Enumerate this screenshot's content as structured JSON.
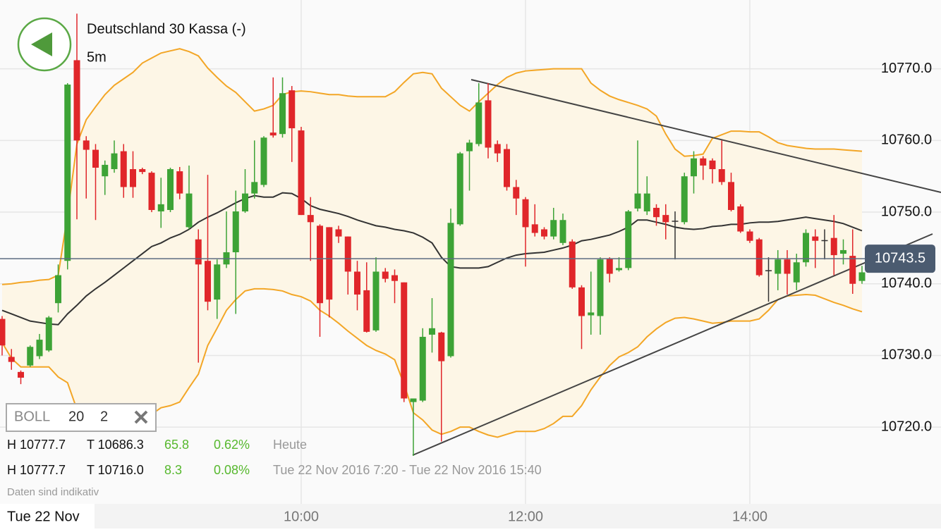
{
  "header": {
    "back_button": "back"
  },
  "chart_data": {
    "type": "candlestick",
    "title": "Deutschland 30 Kassa (-)",
    "subtitle": "5m",
    "categories": [
      null,
      null,
      null,
      null,
      null,
      null,
      null,
      null,
      null,
      null,
      null,
      null,
      null,
      null,
      null,
      null,
      null,
      null,
      null,
      null,
      null,
      null,
      null,
      null,
      null,
      null,
      null,
      null,
      null,
      null,
      null,
      null,
      "10:00",
      null,
      null,
      null,
      null,
      null,
      null,
      null,
      null,
      null,
      null,
      null,
      null,
      null,
      null,
      null,
      null,
      null,
      null,
      null,
      null,
      null,
      null,
      null,
      "12:00",
      null,
      null,
      null,
      null,
      null,
      null,
      null,
      null,
      null,
      null,
      null,
      null,
      null,
      null,
      null,
      null,
      null,
      null,
      null,
      null,
      null,
      null,
      null,
      "14:00",
      null,
      null,
      null,
      null,
      null,
      null,
      null,
      null,
      null,
      null,
      null,
      null
    ],
    "open": [
      10735.1,
      10729.8,
      10727.7,
      10728.6,
      10729.9,
      10730.7,
      10737.3,
      10743.2,
      10771.2,
      10760.0,
      10758.7,
      10755.0,
      10756.0,
      10758.5,
      10756.0,
      10756.0,
      10755.5,
      10750.1,
      10750.3,
      10755.7,
      10747.9,
      10746.2,
      10743.2,
      10737.8,
      10742.7,
      10744.4,
      10750.1,
      10752.6,
      10753.8,
      10761.1,
      10760.9,
      10767.0,
      10761.4,
      10749.6,
      10748.1,
      10747.9,
      10747.6,
      10746.6,
      10741.7,
      10739.1,
      10733.5,
      10741.7,
      10741.2,
      10740.2,
      10723.5,
      10723.7,
      10732.9,
      10733.2,
      10729.9,
      10748.3,
      10758.5,
      10759.5,
      10765.6,
      10759.5,
      10758.8,
      10753.5,
      10751.8,
      10748.3,
      10747.6,
      10746.6,
      10745.7,
      10745.9,
      10739.5,
      10735.6,
      10735.5,
      10743.5,
      10741.9,
      10742.2,
      10750.5,
      10750.1,
      10750.6,
      10749.6,
      10748.8,
      10748.6,
      10755.0,
      10757.5,
      10757.2,
      10756.0,
      10754.2,
      10750.8,
      10747.3,
      10746.2,
      10741.9,
      10741.4,
      10743.4,
      10740.2,
      10743.0,
      10746.6,
      10746.1,
      10746.4,
      10744.2,
      10743.9,
      10740.4
    ],
    "high": [
      10735.5,
      10730.9,
      10727.9,
      10731.4,
      10733.0,
      10735.5,
      10742.7,
      10768.0,
      10777.7,
      10760.6,
      10759.5,
      10757.2,
      10760.0,
      10759.5,
      10758.5,
      10756.2,
      10755.7,
      10754.8,
      10756.2,
      10756.3,
      10756.5,
      10747.6,
      10755.2,
      10743.4,
      10750.1,
      10753.0,
      10756.0,
      10760.0,
      10760.6,
      10768.8,
      10768.8,
      10767.6,
      10761.9,
      10752.1,
      10748.3,
      10747.9,
      10748.1,
      10746.6,
      10743.2,
      10743.0,
      10743.7,
      10742.2,
      10742.0,
      10740.2,
      10724.0,
      10733.8,
      10738.0,
      10733.3,
      10750.5,
      10758.4,
      10760.1,
      10768.0,
      10768.0,
      10760.0,
      10759.5,
      10754.5,
      10752.1,
      10751.1,
      10747.9,
      10750.6,
      10749.8,
      10746.2,
      10739.8,
      10741.7,
      10743.7,
      10743.7,
      10743.7,
      10750.3,
      10760.0,
      10755.0,
      10751.1,
      10751.1,
      10750.1,
      10755.5,
      10758.5,
      10757.8,
      10757.5,
      10760.0,
      10755.5,
      10751.1,
      10747.6,
      10746.4,
      10743.7,
      10744.7,
      10744.7,
      10744.2,
      10747.6,
      10747.6,
      10747.6,
      10749.6,
      10746.2,
      10747.6,
      10742.5
    ],
    "low": [
      10730.0,
      10728.0,
      10726.0,
      10728.4,
      10729.5,
      10730.5,
      10736.0,
      10742.0,
      10749.0,
      10751.9,
      10748.9,
      10752.4,
      10755.5,
      10752.0,
      10752.0,
      10755.3,
      10750.0,
      10747.8,
      10750.0,
      10751.8,
      10747.6,
      10729.0,
      10736.3,
      10735.1,
      10742.2,
      10735.8,
      10749.9,
      10751.9,
      10753.5,
      10760.4,
      10760.4,
      10757.0,
      10749.6,
      10743.2,
      10732.6,
      10735.3,
      10745.7,
      10738.5,
      10736.3,
      10733.2,
      10733.3,
      10740.2,
      10737.3,
      10723.5,
      10716.0,
      10723.5,
      10730.4,
      10718.0,
      10729.7,
      10748.1,
      10753.0,
      10759.2,
      10757.5,
      10757.0,
      10753.0,
      10749.6,
      10742.4,
      10746.6,
      10746.2,
      10746.2,
      10745.4,
      10739.3,
      10730.9,
      10732.9,
      10732.9,
      10740.2,
      10741.7,
      10741.9,
      10750.1,
      10749.6,
      10748.1,
      10746.2,
      10743.4,
      10748.3,
      10752.6,
      10754.5,
      10754.0,
      10753.8,
      10750.1,
      10747.1,
      10745.7,
      10741.0,
      10737.5,
      10739.1,
      10738.5,
      10739.1,
      10742.4,
      10742.2,
      10743.4,
      10741.2,
      10742.7,
      10738.6,
      10740.0
    ],
    "close": [
      10731.4,
      10729.1,
      10726.9,
      10731.2,
      10732.2,
      10735.3,
      10741.2,
      10767.8,
      10760.0,
      10758.7,
      10756.2,
      10756.6,
      10758.2,
      10753.5,
      10753.5,
      10755.6,
      10750.3,
      10751.1,
      10756.0,
      10752.6,
      10752.6,
      10742.7,
      10737.5,
      10742.7,
      10744.4,
      10750.1,
      10752.6,
      10754.2,
      10760.4,
      10760.7,
      10766.6,
      10761.7,
      10749.6,
      10748.6,
      10737.3,
      10737.8,
      10746.6,
      10741.7,
      10738.5,
      10733.3,
      10741.7,
      10740.7,
      10740.4,
      10724.0,
      10724.0,
      10732.6,
      10733.8,
      10729.2,
      10748.5,
      10758.2,
      10759.7,
      10765.3,
      10759.0,
      10758.2,
      10753.5,
      10751.9,
      10747.9,
      10747.1,
      10746.6,
      10748.9,
      10748.9,
      10739.5,
      10735.5,
      10736.0,
      10743.4,
      10741.4,
      10742.2,
      10750.1,
      10752.6,
      10752.6,
      10749.3,
      10748.6,
      10748.8,
      10755.0,
      10757.5,
      10756.5,
      10756.0,
      10754.2,
      10750.3,
      10747.3,
      10746.0,
      10741.2,
      10741.9,
      10743.4,
      10741.4,
      10743.0,
      10747.1,
      10746.0,
      10746.1,
      10744.0,
      10744.7,
      10740.0,
      10741.6
    ],
    "bollinger": {
      "color": "#f3a626",
      "middle_color": "#333333",
      "fill": "#fdf6e6",
      "upper": [
        10739.9,
        10740.0,
        10740.2,
        10740.3,
        10740.5,
        10740.6,
        10741.2,
        10749.6,
        10759.5,
        10762.9,
        10764.7,
        10766.4,
        10767.7,
        10768.6,
        10769.5,
        10770.8,
        10771.5,
        10772.2,
        10772.5,
        10772.8,
        10772.4,
        10771.8,
        10770.1,
        10768.8,
        10767.6,
        10766.7,
        10765.4,
        10764.1,
        10764.4,
        10764.9,
        10766.4,
        10766.8,
        10766.9,
        10766.8,
        10766.6,
        10766.4,
        10766.4,
        10766.2,
        10766.1,
        10766.1,
        10766.1,
        10766.1,
        10766.8,
        10768.1,
        10769.3,
        10769.5,
        10769.3,
        10767.3,
        10766.1,
        10764.9,
        10764.1,
        10765.4,
        10766.6,
        10767.8,
        10768.8,
        10769.4,
        10769.7,
        10769.8,
        10769.9,
        10770.0,
        10770.0,
        10770.0,
        10770.0,
        10768.0,
        10767.0,
        10766.2,
        10765.7,
        10765.3,
        10764.9,
        10764.4,
        10763.4,
        10760.9,
        10758.8,
        10757.8,
        10757.9,
        10758.1,
        10760.3,
        10760.8,
        10761.3,
        10761.3,
        10761.2,
        10761.2,
        10760.5,
        10759.7,
        10759.3,
        10759.1,
        10758.9,
        10758.8,
        10758.8,
        10758.8,
        10758.7,
        10758.6,
        10758.5
      ],
      "middle": [
        10736.3,
        10735.8,
        10735.3,
        10734.8,
        10734.6,
        10734.4,
        10734.3,
        10735.8,
        10737.0,
        10738.3,
        10739.3,
        10740.2,
        10741.2,
        10742.2,
        10743.2,
        10744.2,
        10745.2,
        10745.7,
        10746.4,
        10746.9,
        10747.6,
        10748.6,
        10749.3,
        10749.9,
        10750.6,
        10751.3,
        10751.9,
        10752.3,
        10752.1,
        10752.1,
        10752.7,
        10752.6,
        10751.9,
        10750.9,
        10750.4,
        10750.1,
        10749.8,
        10749.4,
        10748.9,
        10748.5,
        10748.1,
        10747.9,
        10747.6,
        10747.4,
        10747.1,
        10746.5,
        10745.7,
        10743.7,
        10742.4,
        10742.2,
        10742.2,
        10742.2,
        10742.4,
        10743.0,
        10743.6,
        10744.0,
        10744.2,
        10744.3,
        10744.4,
        10744.7,
        10745.0,
        10745.4,
        10746.0,
        10746.2,
        10746.5,
        10746.8,
        10747.3,
        10747.9,
        10748.9,
        10748.9,
        10748.6,
        10748.3,
        10747.9,
        10747.7,
        10747.6,
        10747.7,
        10748.0,
        10748.1,
        10748.3,
        10748.3,
        10748.5,
        10748.6,
        10748.6,
        10748.7,
        10748.9,
        10749.1,
        10749.3,
        10749.1,
        10748.9,
        10748.7,
        10748.4,
        10747.9,
        10747.4
      ],
      "lower": [
        10731.8,
        10729.6,
        10728.4,
        10728.4,
        10728.4,
        10728.4,
        10727.0,
        10726.2,
        10722.5,
        10721.3,
        10720.5,
        10720.2,
        10719.9,
        10719.6,
        10719.8,
        10720.5,
        10721.8,
        10722.7,
        10723.0,
        10723.5,
        10725.5,
        10727.4,
        10731.4,
        10733.8,
        10736.3,
        10737.8,
        10739.0,
        10739.3,
        10739.3,
        10739.2,
        10739.0,
        10738.5,
        10738.2,
        10737.6,
        10736.3,
        10735.5,
        10734.5,
        10733.4,
        10732.4,
        10731.4,
        10730.7,
        10730.2,
        10729.4,
        10726.0,
        10722.0,
        10721.0,
        10719.6,
        10719.0,
        10719.4,
        10720.0,
        10720.0,
        10719.4,
        10718.9,
        10718.6,
        10719.0,
        10719.4,
        10719.4,
        10719.4,
        10719.8,
        10720.5,
        10721.5,
        10721.5,
        10723.0,
        10725.2,
        10727.0,
        10728.6,
        10729.8,
        10730.4,
        10731.2,
        10732.6,
        10733.7,
        10734.6,
        10735.2,
        10735.3,
        10735.1,
        10734.8,
        10734.5,
        10734.6,
        10734.8,
        10734.8,
        10734.8,
        10735.1,
        10736.3,
        10737.8,
        10738.3,
        10738.4,
        10738.5,
        10738.4,
        10737.9,
        10737.4,
        10737.0,
        10736.5,
        10736.1
      ]
    },
    "up_color": "#3da336",
    "down_color": "#e0262a",
    "doji_color": "#333333",
    "ylim": [
      10709.3,
      10779.6
    ],
    "yticks": [
      {
        "value": 10720,
        "label": "10720.0"
      },
      {
        "value": 10730,
        "label": "10730.0"
      },
      {
        "value": 10740,
        "label": "10740.0"
      },
      {
        "value": 10750,
        "label": "10750.0"
      },
      {
        "value": 10760,
        "label": "10760.0"
      },
      {
        "value": 10770,
        "label": "10770.0"
      }
    ],
    "grid": true,
    "current_price": 10743.5,
    "date_label": "Tue 22 Nov"
  },
  "indicator": {
    "name": "BOLL",
    "period": "20",
    "deviation": "2"
  },
  "stats": [
    {
      "high": "H 10777.7",
      "low": "T 10686.3",
      "change": "65.8",
      "percent": "0.62%",
      "range": "Heute"
    },
    {
      "high": "H 10777.7",
      "low": "T 10716.0",
      "change": "8.3",
      "percent": "0.08%",
      "range": "Tue 22 Nov 2016 7:20 - Tue 22 Nov 2016 15:40"
    }
  ],
  "disclaimer": "Daten sind indikativ"
}
